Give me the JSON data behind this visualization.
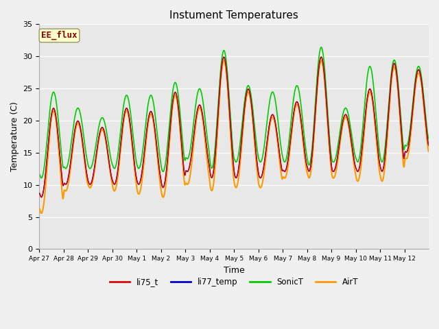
{
  "title": "Instument Temperatures",
  "xlabel": "Time",
  "ylabel": "Temperature (C)",
  "ylim": [
    0,
    35
  ],
  "fig_facecolor": "#f0f0f0",
  "plot_bg_color": "#e8e8e8",
  "annotation_text": "EE_flux",
  "annotation_color": "#8b0000",
  "annotation_bg": "#ffffcc",
  "x_tick_labels": [
    "Apr 27",
    "Apr 28",
    "Apr 29",
    "Apr 30",
    "May 1",
    "May 2",
    "May 3",
    "May 4",
    "May 5",
    "May 6",
    "May 7",
    "May 8",
    "May 9",
    "May 10",
    "May 11",
    "May 12"
  ],
  "line_colors": {
    "li75_t": "#dd0000",
    "li77_temp": "#0000cc",
    "SonicT": "#00cc00",
    "AirT": "#ff9900"
  },
  "line_widths": {
    "li75_t": 1.0,
    "li77_temp": 1.0,
    "SonicT": 1.2,
    "AirT": 1.5
  },
  "n_days": 16,
  "pts_per_day": 96,
  "day_peaks_base": [
    22,
    20,
    19,
    22,
    21.5,
    24.5,
    22.5,
    30,
    25,
    21,
    23,
    30,
    21,
    25,
    29,
    28
  ],
  "day_troughs_base": [
    8,
    10,
    10,
    10,
    10,
    9.5,
    12,
    11,
    11,
    11,
    12,
    12,
    12,
    12,
    12,
    15
  ],
  "sonic_peak_extra": [
    2.5,
    2.0,
    1.5,
    2.0,
    2.5,
    1.5,
    2.5,
    1.0,
    0.5,
    3.5,
    2.5,
    1.5,
    1.0,
    3.5,
    0.5,
    0.5
  ],
  "sonic_trough_extra": [
    3.0,
    2.5,
    2.5,
    2.5,
    2.5,
    2.5,
    2.0,
    1.5,
    2.5,
    2.5,
    1.5,
    1.0,
    1.5,
    1.5,
    1.5,
    1.0
  ],
  "air_peak_factor": 0.98,
  "air_trough_drop": [
    2.5,
    1.0,
    0.5,
    1.0,
    1.5,
    1.5,
    2.0,
    2.0,
    1.5,
    1.5,
    1.0,
    1.0,
    1.0,
    1.5,
    1.5,
    1.0
  ]
}
